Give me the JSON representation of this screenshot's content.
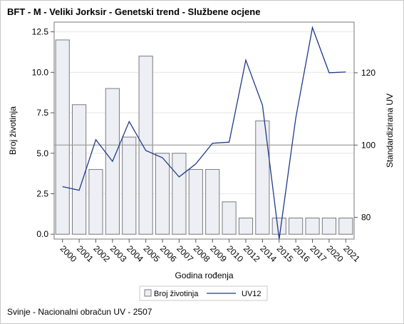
{
  "title": "BFT - M - Veliki Jorksir - Genetski trend - Službene ocjene",
  "footer": "Svinje - Nacionalni obračun UV - 2507",
  "chart_data": {
    "type": "bar+line",
    "categories": [
      "2000",
      "2001",
      "2002",
      "2003",
      "2004",
      "2005",
      "2006",
      "2007",
      "2008",
      "2009",
      "2010",
      "2012",
      "2014",
      "2015",
      "2016",
      "2017",
      "2020",
      "2021"
    ],
    "series": [
      {
        "name": "Broj životinja",
        "type": "bar",
        "axis": "left",
        "values": [
          12,
          8,
          4,
          9,
          6,
          11,
          5,
          5,
          4,
          4,
          2,
          1,
          7,
          1,
          1,
          1,
          1,
          1
        ]
      },
      {
        "name": "UV12",
        "type": "line",
        "axis": "right",
        "values": [
          88.5,
          87.5,
          101.5,
          95.5,
          106.5,
          98.5,
          96.5,
          91.2,
          94.8,
          100.5,
          100.8,
          123.5,
          111,
          74,
          107.5,
          132.5,
          120,
          120.2
        ]
      }
    ],
    "xlabel": "Godina rođenja",
    "ylabel": "Broj životinja",
    "y2label": "Standardizirana UV",
    "ylim": [
      -0.3,
      13.1
    ],
    "y2lim": [
      74,
      134
    ],
    "yticks": [
      "0.0",
      "2.5",
      "5.0",
      "7.5",
      "10.0",
      "12.5"
    ],
    "y2ticks": [
      "80",
      "100",
      "120"
    ],
    "reference_line_y2": 100,
    "grid": "horizontal",
    "legend_placement": "bottom",
    "colors": {
      "bar_fill": "#edeff4",
      "bar_stroke": "#7a7a82",
      "line": "#1f3a8a",
      "ref_line": "#a0a0a0",
      "grid": "#e6e6e6"
    }
  }
}
